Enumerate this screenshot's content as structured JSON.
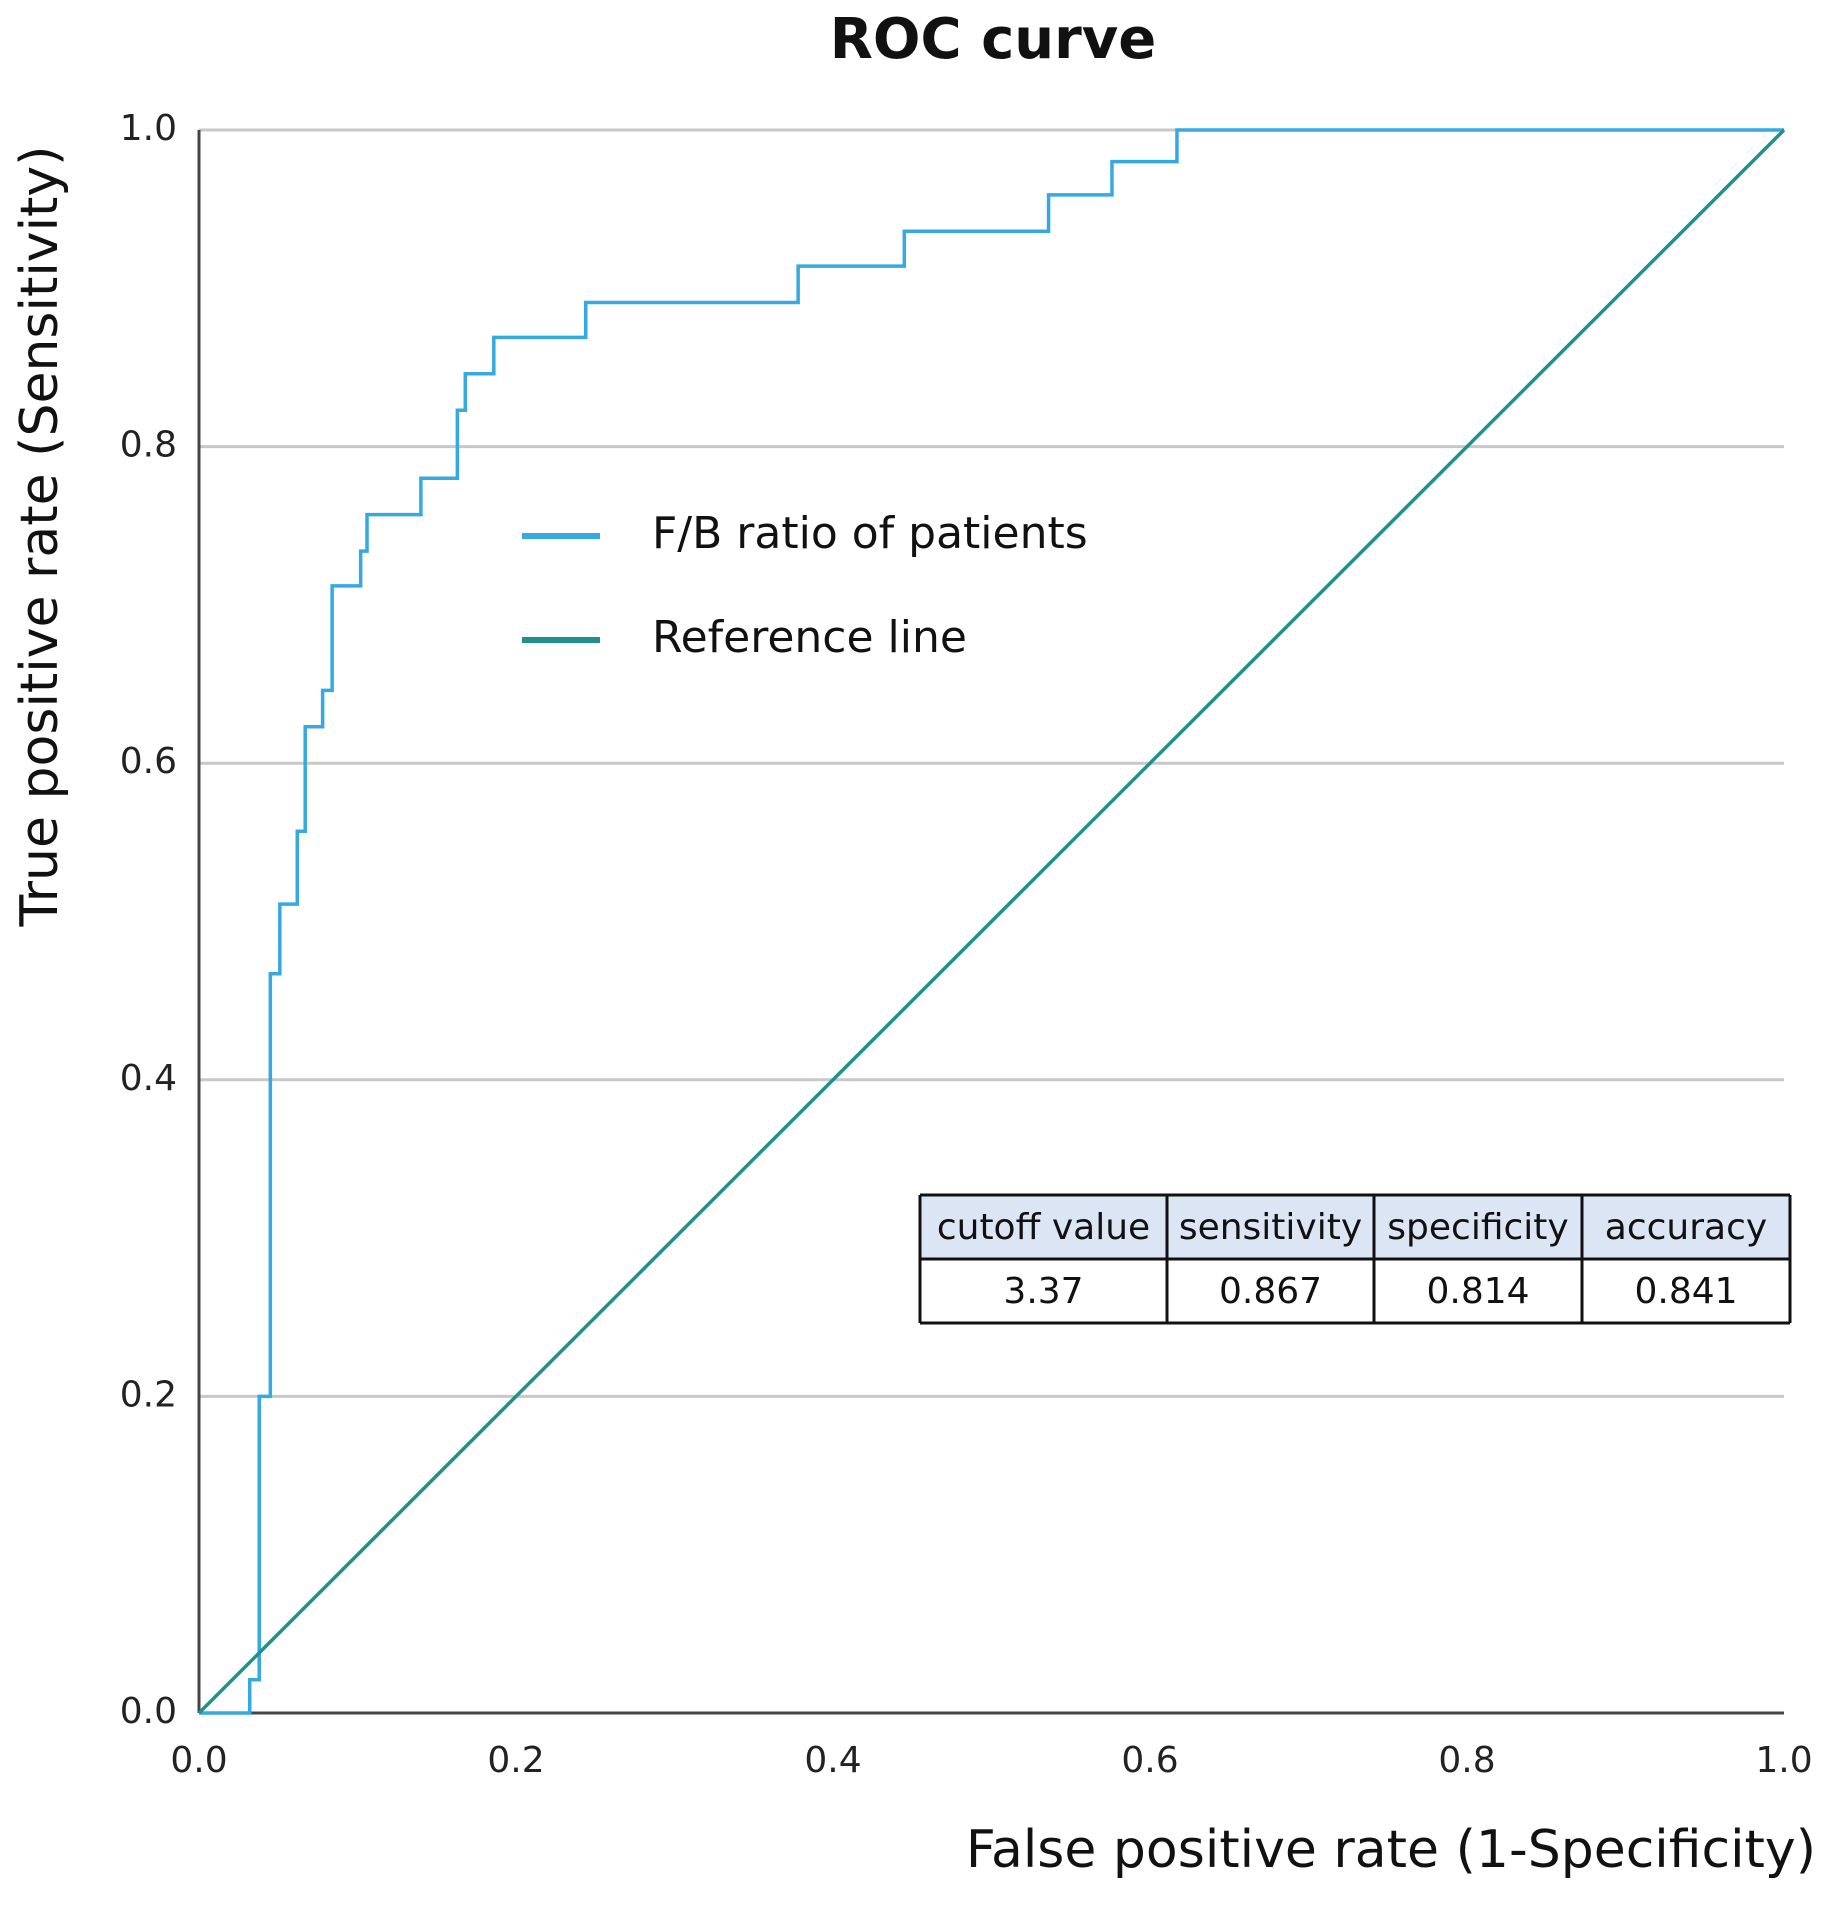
{
  "chart_data": {
    "type": "line",
    "title": "ROC curve",
    "x_label": "False positive rate (1-Specificity)",
    "y_label": "True positive rate (Sensitivity)",
    "xlim": [
      0,
      1
    ],
    "ylim": [
      0,
      1
    ],
    "xticks": [
      {
        "value": 0,
        "label": "0.0"
      },
      0.2,
      0.4,
      0.6,
      0.8,
      {
        "value": 1,
        "label": "1.0"
      }
    ],
    "yticks": [
      {
        "value": 0,
        "label": "0.0"
      },
      0.2,
      0.4,
      0.6,
      0.8,
      {
        "value": 1,
        "label": "1.0"
      }
    ],
    "grid": true,
    "series": [
      {
        "name": "F/B ratio of patients",
        "color": "#36a9e1",
        "x": [
          0,
          0.032,
          0.032,
          0.038,
          0.038,
          0.045,
          0.045,
          0.051,
          0.051,
          0.062,
          0.062,
          0.067,
          0.067,
          0.078,
          0.078,
          0.084,
          0.084,
          0.102,
          0.102,
          0.106,
          0.106,
          0.14,
          0.14,
          0.163,
          0.163,
          0.168,
          0.168,
          0.186,
          0.186,
          0.244,
          0.244,
          0.378,
          0.378,
          0.445,
          0.445,
          0.536,
          0.536,
          0.576,
          0.576,
          0.617,
          0.617,
          1
        ],
        "values": [
          0,
          0,
          0.021,
          0.021,
          0.2,
          0.2,
          0.467,
          0.467,
          0.511,
          0.511,
          0.557,
          0.557,
          0.623,
          0.623,
          0.646,
          0.646,
          0.712,
          0.712,
          0.734,
          0.734,
          0.757,
          0.757,
          0.78,
          0.78,
          0.823,
          0.823,
          0.846,
          0.846,
          0.869,
          0.869,
          0.891,
          0.891,
          0.914,
          0.914,
          0.936,
          0.936,
          0.959,
          0.959,
          0.98,
          0.98,
          1,
          1
        ]
      },
      {
        "name": "Reference line",
        "color": "#20908c",
        "x": [
          0,
          1
        ],
        "values": [
          0,
          1
        ]
      }
    ],
    "table": {
      "columns": [
        "cutoff value",
        "sensitivity",
        "specificity",
        "accuracy"
      ],
      "rows": [
        [
          3.37,
          0.867,
          0.814,
          0.841
        ]
      ]
    }
  }
}
